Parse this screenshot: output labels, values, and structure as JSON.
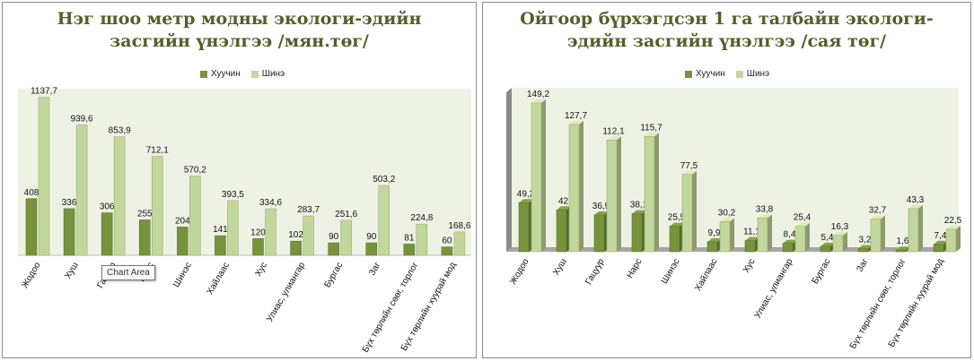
{
  "chart_data": [
    {
      "type": "bar",
      "title": "Нэг шоо метр модны экологи-эдийн засгийн үнэлгээ /мян.төг/",
      "title_lines": [
        "Нэг шоо метр модны экологи-эдийн",
        "засгийн үнэлгээ /мян.төг/"
      ],
      "categories": [
        "Жодоо",
        "Хуш",
        "Гацуур",
        "Нарс",
        "Шинэс",
        "Хайлаас",
        "Хус",
        "Улиас, улиангар",
        "Бургас",
        "Заг",
        "Бүх төрлийн сөөг, торлог",
        "Бүх төрлийн хуурай мод"
      ],
      "series": [
        {
          "name": "Хуучин",
          "values": [
            408,
            336,
            306,
            255,
            204,
            141,
            120,
            102,
            90,
            90,
            81,
            60
          ],
          "labels": [
            "408",
            "336",
            "306",
            "255",
            "204",
            "141",
            "120",
            "102",
            "90",
            "90",
            "81",
            "60"
          ]
        },
        {
          "name": "Шинэ",
          "values": [
            1137.7,
            939.6,
            853.9,
            712.1,
            570.2,
            393.5,
            334.6,
            283.7,
            251.6,
            503.2,
            224.8,
            168.6
          ],
          "labels": [
            "1137,7",
            "939,6",
            "853,9",
            "712,1",
            "570,2",
            "393,5",
            "334,6",
            "283,7",
            "251,6",
            "503,2",
            "224,8",
            "168,6"
          ]
        }
      ],
      "ylim": [
        0,
        1200
      ],
      "legend_position": "top",
      "grid": false,
      "colors": {
        "old": "#77933c",
        "new": "#c3d69b"
      }
    },
    {
      "type": "bar",
      "title": "Ойгоор бүрхэгдсэн 1 га талбайн экологи-эдийн засгийн үнэлгээ /сая төг/",
      "title_lines": [
        "Ойгоор бүрхэгдсэн 1 га талбайн экологи-",
        "эдийн засгийн үнэлгээ /сая төг/"
      ],
      "categories": [
        "Жодоо",
        "Хуш",
        "Гацуур",
        "Нарс",
        "Шинэс",
        "Хайлаас",
        "Хус",
        "Улиас, улиангар",
        "Бургас",
        "Заг",
        "Бүх төрлийн сөөг, торлог",
        "Бүх төрлийн хуурай мод"
      ],
      "series": [
        {
          "name": "Хуучин",
          "values": [
            49.2,
            42,
            36.9,
            38.1,
            25.5,
            9.9,
            11.1,
            8.4,
            5.4,
            3.2,
            1.6,
            7.4
          ],
          "labels": [
            "49,2",
            "42",
            "36,9",
            "38,1",
            "25,5",
            "9,9",
            "11,1",
            "8,4",
            "5,4",
            "3,2",
            "1,6",
            "7,4"
          ]
        },
        {
          "name": "Шинэ",
          "values": [
            149.2,
            127.7,
            112.1,
            115.7,
            77.5,
            30.2,
            33.8,
            25.4,
            16.3,
            32.7,
            43.3,
            22.5
          ],
          "labels": [
            "149,2",
            "127,7",
            "112,1",
            "115,7",
            "77,5",
            "30,2",
            "33,8",
            "25,4",
            "16,3",
            "32,7",
            "43,3",
            "22,5"
          ]
        }
      ],
      "ylim": [
        0,
        160
      ],
      "legend_position": "top",
      "grid": false,
      "colors": {
        "old": "#77933c",
        "new": "#c3d69b"
      }
    }
  ],
  "tooltip": {
    "label": "Chart Area"
  }
}
